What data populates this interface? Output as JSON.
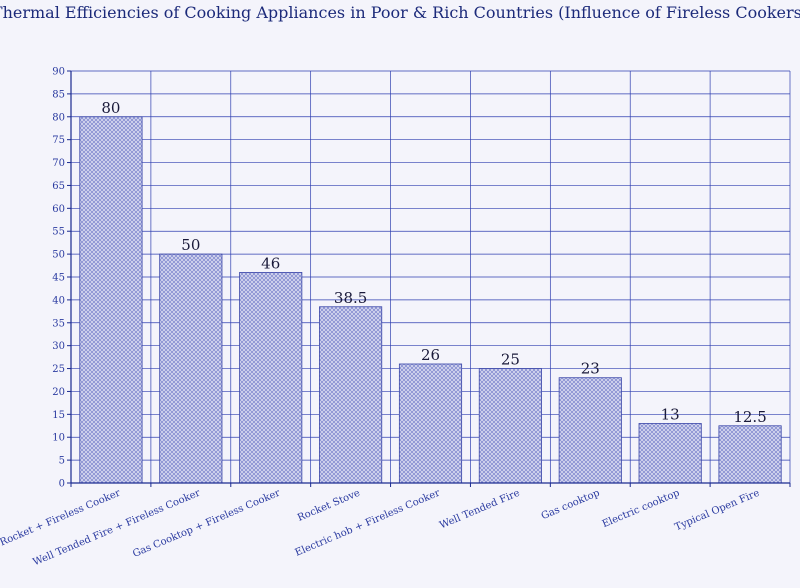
{
  "chart_data": {
    "type": "bar",
    "title": "Thermal Efficiencies of Cooking Appliances in Poor & Rich Countries (Influence of Fireless Cookers)",
    "xlabel": "",
    "ylabel": "",
    "categories": [
      "Rocket + Fireless Cooker",
      "Well Tended Fire + Fireless Cooker",
      "Gas Cooktop + Fireless Cooker",
      "Rocket Stove",
      "Electric hob + Fireless Cooker",
      "Well Tended Fire",
      "Gas cooktop",
      "Electric cooktop",
      "Typical Open Fire"
    ],
    "values": [
      80,
      50,
      46,
      38.5,
      26,
      25,
      23,
      13,
      12.5
    ],
    "value_labels": [
      "80",
      "50",
      "46",
      "38.5",
      "26",
      "25",
      "23",
      "13",
      "12.5"
    ],
    "ylim": [
      0,
      90
    ],
    "yticks": [
      0,
      5,
      10,
      15,
      20,
      25,
      30,
      35,
      40,
      45,
      50,
      55,
      60,
      65,
      70,
      75,
      80,
      85,
      90
    ],
    "grid": true,
    "colors": {
      "background": "#f4f4fb",
      "grid": "#2f3fb0",
      "bar_fill": "#d3d6ee",
      "bar_hatch": "#6f78c8",
      "bar_edge": "#3a46a8",
      "axis": "#1a2a90"
    }
  }
}
